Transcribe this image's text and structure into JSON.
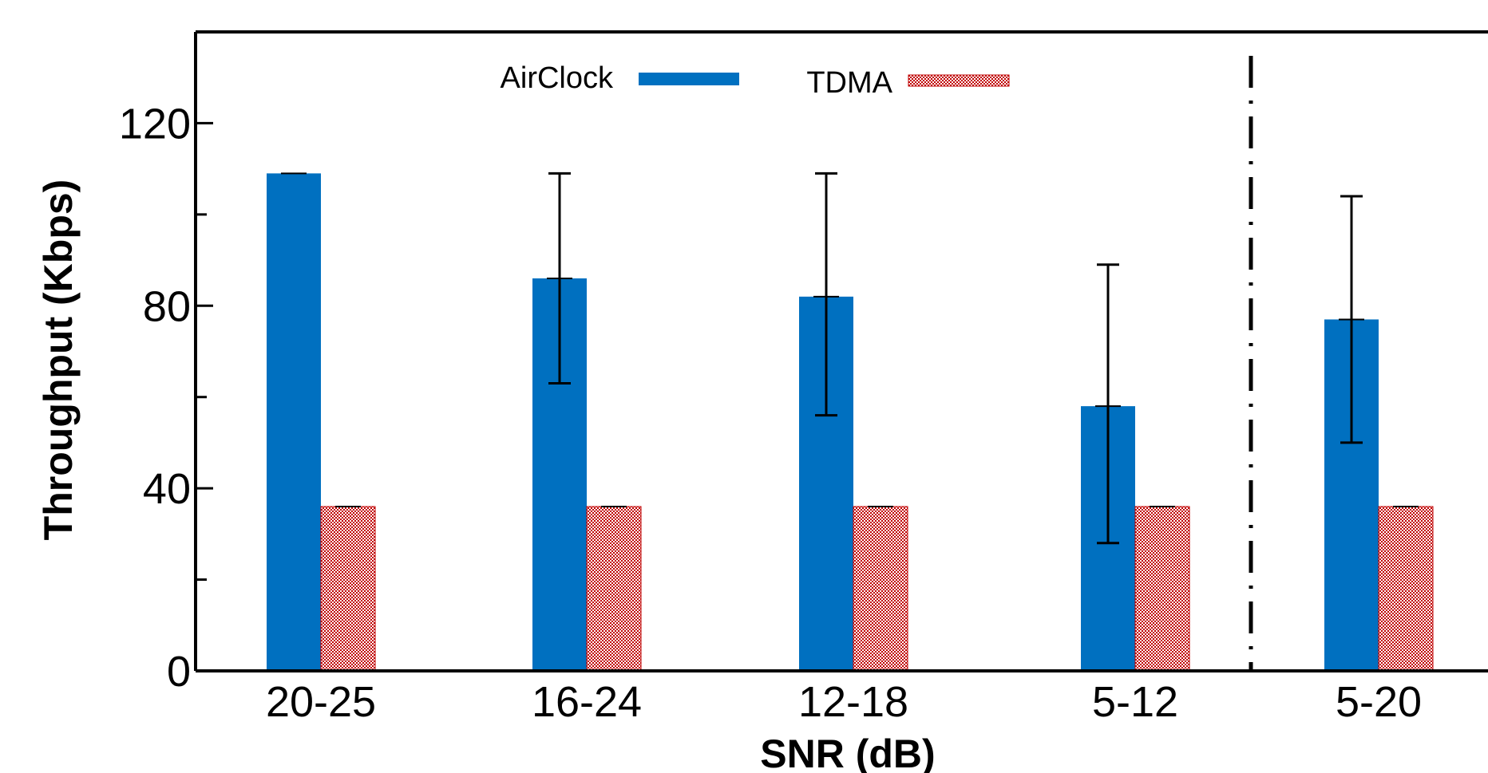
{
  "chart_data": {
    "type": "bar",
    "title": "",
    "xlabel": "SNR (dB)",
    "ylabel": "Throughput (Kbps)",
    "ylim": [
      0,
      140
    ],
    "y_ticks": [
      0,
      40,
      80,
      120
    ],
    "categories": [
      "20-25",
      "16-24",
      "12-18",
      "5-12",
      "5-20"
    ],
    "series": [
      {
        "name": "AirClock",
        "color": "#0070C0",
        "pattern": "solid",
        "values": [
          109,
          86,
          82,
          58,
          77
        ],
        "error_low": [
          109,
          63,
          56,
          28,
          50
        ],
        "error_high": [
          109,
          109,
          109,
          89,
          104
        ]
      },
      {
        "name": "TDMA",
        "color": "#C00000",
        "pattern": "checkered",
        "values": [
          36,
          36,
          36,
          36,
          36
        ]
      }
    ],
    "separator_after_category": 3,
    "legend_position": "top"
  }
}
